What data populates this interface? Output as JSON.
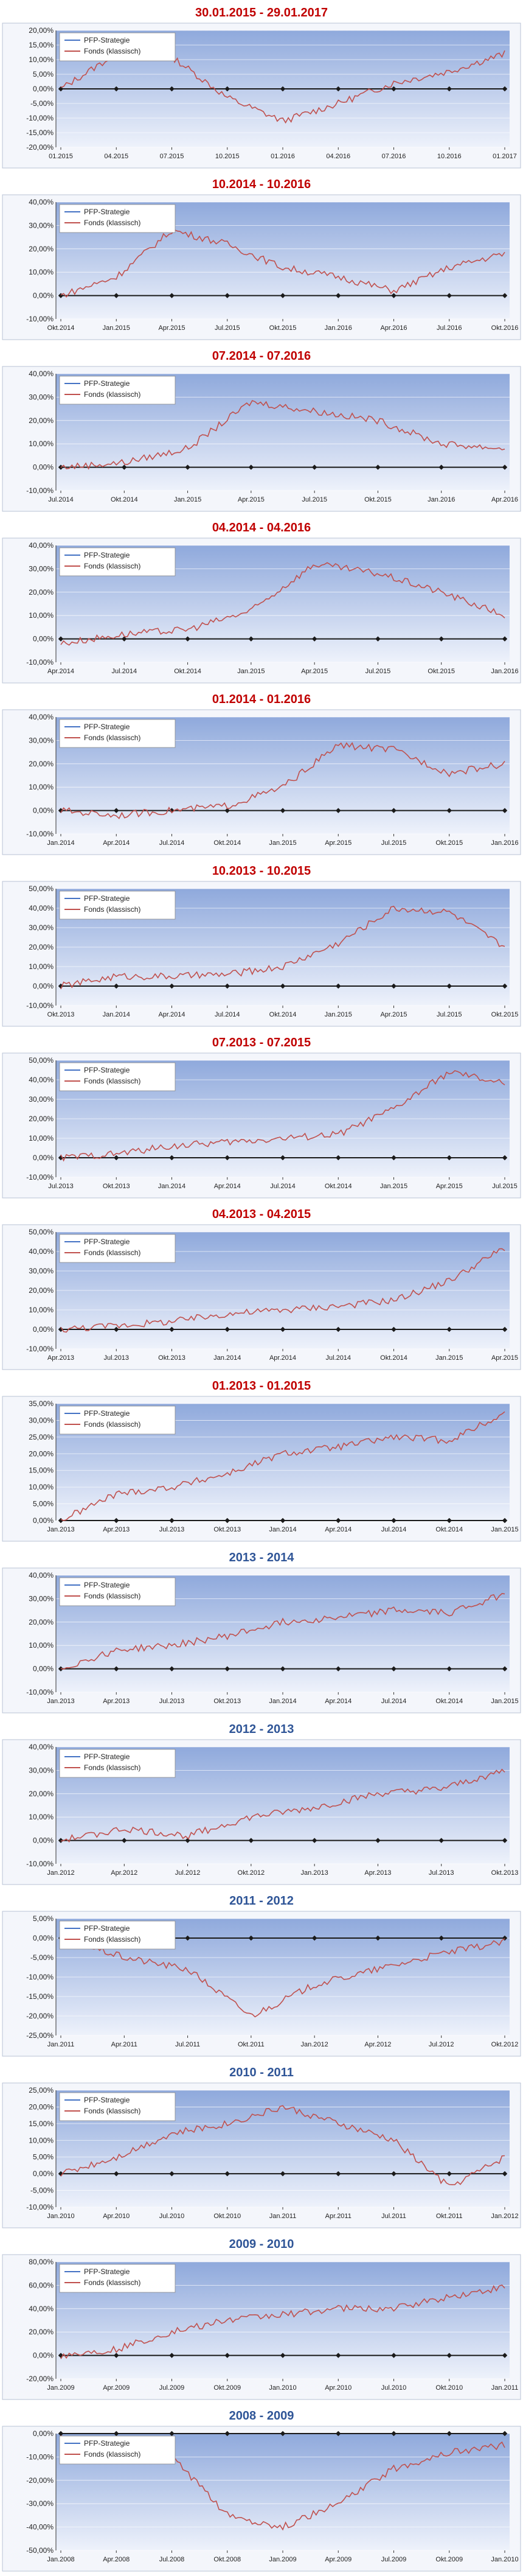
{
  "legend_labels": [
    "PFP-Strategie",
    "Fonds (klassisch)"
  ],
  "colors": {
    "title_red": "#c00000",
    "title_blue": "#2f5597",
    "series_pfp": "#4472c4",
    "series_fonds": "#c0504d"
  },
  "chart_data": [
    {
      "type": "line",
      "title": "30.01.2015 - 29.01.2017",
      "title_color": "red",
      "x_labels": [
        "01.2015",
        "04.2015",
        "07.2015",
        "10.2015",
        "01.2016",
        "04.2016",
        "07.2016",
        "10.2016",
        "01.2017"
      ],
      "ylim": [
        -20,
        20
      ],
      "yticks": [
        -20,
        -15,
        -10,
        -5,
        0,
        5,
        10,
        15,
        20
      ],
      "decimals": 2,
      "legend": "top-left",
      "series": [
        {
          "name": "PFP-Strategie",
          "values": [
            0,
            0,
            0,
            0,
            0,
            0,
            0,
            0,
            0
          ]
        },
        {
          "name": "Fonds (klassisch)",
          "values": [
            0,
            12,
            11,
            -3,
            -11,
            -5,
            2,
            6,
            12
          ]
        }
      ]
    },
    {
      "type": "line",
      "title": "10.2014 - 10.2016",
      "title_color": "red",
      "x_labels": [
        "Okt.2014",
        "Jan.2015",
        "Apr.2015",
        "Jul.2015",
        "Okt.2015",
        "Jan.2016",
        "Apr.2016",
        "Jul.2016",
        "Okt.2016"
      ],
      "ylim": [
        -10,
        40
      ],
      "yticks": [
        -10,
        0,
        10,
        20,
        30,
        40
      ],
      "decimals": 2,
      "legend": "top-left",
      "series": [
        {
          "name": "PFP-Strategie",
          "values": [
            0,
            0,
            0,
            0,
            0,
            0,
            0,
            0,
            0
          ]
        },
        {
          "name": "Fonds (klassisch)",
          "values": [
            0,
            8,
            28,
            22,
            12,
            8,
            2,
            12,
            18
          ]
        }
      ]
    },
    {
      "type": "line",
      "title": "07.2014 - 07.2016",
      "title_color": "red",
      "x_labels": [
        "Jul.2014",
        "Okt.2014",
        "Jan.2015",
        "Apr.2015",
        "Jul.2015",
        "Okt.2015",
        "Jan.2016",
        "Apr.2016"
      ],
      "ylim": [
        -10,
        40
      ],
      "yticks": [
        -10,
        0,
        10,
        20,
        30,
        40
      ],
      "decimals": 2,
      "legend": "top-left",
      "series": [
        {
          "name": "PFP-Strategie",
          "values": [
            0,
            0,
            0,
            0,
            0,
            0,
            0,
            0
          ]
        },
        {
          "name": "Fonds (klassisch)",
          "values": [
            0,
            2,
            8,
            28,
            24,
            20,
            10,
            8
          ]
        }
      ]
    },
    {
      "type": "line",
      "title": "04.2014 - 04.2016",
      "title_color": "red",
      "x_labels": [
        "Apr.2014",
        "Jul.2014",
        "Okt.2014",
        "Jan.2015",
        "Apr.2015",
        "Jul.2015",
        "Okt.2015",
        "Jan.2016"
      ],
      "ylim": [
        -10,
        40
      ],
      "yticks": [
        -10,
        0,
        10,
        20,
        30,
        40
      ],
      "decimals": 2,
      "legend": "top-left",
      "series": [
        {
          "name": "PFP-Strategie",
          "values": [
            0,
            0,
            0,
            0,
            0,
            0,
            0,
            0
          ]
        },
        {
          "name": "Fonds (klassisch)",
          "values": [
            -2,
            2,
            4,
            12,
            32,
            28,
            20,
            10
          ]
        }
      ]
    },
    {
      "type": "line",
      "title": "01.2014 - 01.2016",
      "title_color": "red",
      "x_labels": [
        "Jan.2014",
        "Apr.2014",
        "Jul.2014",
        "Okt.2014",
        "Jan.2015",
        "Apr.2015",
        "Jul.2015",
        "Okt.2015",
        "Jan.2016"
      ],
      "ylim": [
        -10,
        40
      ],
      "yticks": [
        -10,
        0,
        10,
        20,
        30,
        40
      ],
      "decimals": 2,
      "legend": "top-left",
      "series": [
        {
          "name": "PFP-Strategie",
          "values": [
            0,
            0,
            0,
            0,
            0,
            0,
            0,
            0,
            0
          ]
        },
        {
          "name": "Fonds (klassisch)",
          "values": [
            0,
            -2,
            0,
            2,
            10,
            28,
            26,
            16,
            20
          ]
        }
      ]
    },
    {
      "type": "line",
      "title": "10.2013 - 10.2015",
      "title_color": "red",
      "x_labels": [
        "Okt.2013",
        "Jan.2014",
        "Apr.2014",
        "Jul.2014",
        "Okt.2014",
        "Jan.2015",
        "Apr.2015",
        "Jul.2015",
        "Okt.2015"
      ],
      "ylim": [
        -10,
        50
      ],
      "yticks": [
        -10,
        0,
        10,
        20,
        30,
        40,
        50
      ],
      "decimals": 2,
      "legend": "top-left",
      "series": [
        {
          "name": "PFP-Strategie",
          "values": [
            0,
            0,
            0,
            0,
            0,
            0,
            0,
            0,
            0
          ]
        },
        {
          "name": "Fonds (klassisch)",
          "values": [
            0,
            5,
            5,
            6,
            10,
            22,
            40,
            38,
            20
          ]
        }
      ]
    },
    {
      "type": "line",
      "title": "07.2013 - 07.2015",
      "title_color": "red",
      "x_labels": [
        "Jul.2013",
        "Okt.2013",
        "Jan.2014",
        "Apr.2014",
        "Jul.2014",
        "Okt.2014",
        "Jan.2015",
        "Apr.2015",
        "Jul.2015"
      ],
      "ylim": [
        -10,
        50
      ],
      "yticks": [
        -10,
        0,
        10,
        20,
        30,
        40,
        50
      ],
      "decimals": 2,
      "legend": "top-left",
      "series": [
        {
          "name": "PFP-Strategie",
          "values": [
            0,
            0,
            0,
            0,
            0,
            0,
            0,
            0,
            0
          ]
        },
        {
          "name": "Fonds (klassisch)",
          "values": [
            0,
            2,
            6,
            8,
            10,
            12,
            25,
            44,
            38
          ]
        }
      ]
    },
    {
      "type": "line",
      "title": "04.2013 - 04.2015",
      "title_color": "red",
      "x_labels": [
        "Apr.2013",
        "Jul.2013",
        "Okt.2013",
        "Jan.2014",
        "Apr.2014",
        "Jul.2014",
        "Okt.2014",
        "Jan.2015",
        "Apr.2015"
      ],
      "ylim": [
        -10,
        50
      ],
      "yticks": [
        -10,
        0,
        10,
        20,
        30,
        40,
        50
      ],
      "decimals": 2,
      "legend": "top-left",
      "series": [
        {
          "name": "PFP-Strategie",
          "values": [
            0,
            0,
            0,
            0,
            0,
            0,
            0,
            0,
            0
          ]
        },
        {
          "name": "Fonds (klassisch)",
          "values": [
            0,
            2,
            4,
            8,
            10,
            12,
            15,
            25,
            42
          ]
        }
      ]
    },
    {
      "type": "line",
      "title": "01.2013 - 01.2015",
      "title_color": "red",
      "x_labels": [
        "Jan.2013",
        "Apr.2013",
        "Jul.2013",
        "Okt.2013",
        "Jan.2014",
        "Apr.2014",
        "Jul.2014",
        "Okt.2014",
        "Jan.2015"
      ],
      "ylim": [
        0,
        35
      ],
      "yticks": [
        0,
        5,
        10,
        15,
        20,
        25,
        30,
        35
      ],
      "decimals": 2,
      "legend": "top-left",
      "series": [
        {
          "name": "PFP-Strategie",
          "values": [
            0,
            0,
            0,
            0,
            0,
            0,
            0,
            0,
            0
          ]
        },
        {
          "name": "Fonds (klassisch)",
          "values": [
            0,
            8,
            10,
            14,
            20,
            22,
            25,
            24,
            32
          ]
        }
      ]
    },
    {
      "type": "line",
      "title": "2013 - 2014",
      "title_color": "blue",
      "x_labels": [
        "Jan.2013",
        "Apr.2013",
        "Jul.2013",
        "Okt.2013",
        "Jan.2014",
        "Apr.2014",
        "Jul.2014",
        "Okt.2014",
        "Jan.2015"
      ],
      "ylim": [
        -10,
        40
      ],
      "yticks": [
        -10,
        0,
        10,
        20,
        30,
        40
      ],
      "decimals": 2,
      "legend": "top-left",
      "series": [
        {
          "name": "PFP-Strategie",
          "values": [
            0,
            0,
            0,
            0,
            0,
            0,
            0,
            0,
            0
          ]
        },
        {
          "name": "Fonds (klassisch)",
          "values": [
            0,
            8,
            10,
            14,
            20,
            22,
            25,
            24,
            32
          ]
        }
      ]
    },
    {
      "type": "line",
      "title": "2012 - 2013",
      "title_color": "blue",
      "x_labels": [
        "Jan.2012",
        "Apr.2012",
        "Jul.2012",
        "Okt.2012",
        "Jan.2013",
        "Apr.2013",
        "Jul.2013",
        "Okt.2013"
      ],
      "ylim": [
        -10,
        40
      ],
      "yticks": [
        -10,
        0,
        10,
        20,
        30,
        40
      ],
      "decimals": 2,
      "legend": "top-left",
      "series": [
        {
          "name": "PFP-Strategie",
          "values": [
            0,
            0,
            0,
            0,
            0,
            0,
            0,
            0
          ]
        },
        {
          "name": "Fonds (klassisch)",
          "values": [
            0,
            5,
            2,
            10,
            14,
            20,
            22,
            30
          ]
        }
      ]
    },
    {
      "type": "line",
      "title": "2011 - 2012",
      "title_color": "blue",
      "x_labels": [
        "Jan.2011",
        "Apr.2011",
        "Jul.2011",
        "Okt.2011",
        "Jan.2012",
        "Apr.2012",
        "Jul.2012",
        "Okt.2012"
      ],
      "ylim": [
        -25,
        5
      ],
      "yticks": [
        -25,
        -20,
        -15,
        -10,
        -5,
        0,
        5
      ],
      "decimals": 2,
      "legend": "top-left",
      "series": [
        {
          "name": "PFP-Strategie",
          "values": [
            0,
            0,
            0,
            0,
            0,
            0,
            0,
            0
          ]
        },
        {
          "name": "Fonds (klassisch)",
          "values": [
            0,
            -5,
            -8,
            -20,
            -12,
            -8,
            -4,
            -1
          ]
        }
      ]
    },
    {
      "type": "line",
      "title": "2010 - 2011",
      "title_color": "blue",
      "x_labels": [
        "Jan.2010",
        "Apr.2010",
        "Jul.2010",
        "Okt.2010",
        "Jan.2011",
        "Apr.2011",
        "Jul.2011",
        "Okt.2011",
        "Jan.2012"
      ],
      "ylim": [
        -10,
        25
      ],
      "yticks": [
        -10,
        -5,
        0,
        5,
        10,
        15,
        20,
        25
      ],
      "decimals": 2,
      "legend": "top-left",
      "series": [
        {
          "name": "PFP-Strategie",
          "values": [
            0,
            0,
            0,
            0,
            0,
            0,
            0,
            0,
            0
          ]
        },
        {
          "name": "Fonds (klassisch)",
          "values": [
            0,
            5,
            12,
            15,
            20,
            15,
            10,
            -4,
            5
          ]
        }
      ]
    },
    {
      "type": "line",
      "title": "2009 - 2010",
      "title_color": "blue",
      "x_labels": [
        "Jan.2009",
        "Apr.2009",
        "Jul.2009",
        "Okt.2009",
        "Jan.2010",
        "Apr.2010",
        "Jul.2010",
        "Okt.2010",
        "Jan.2011"
      ],
      "ylim": [
        -20,
        80
      ],
      "yticks": [
        -20,
        0,
        20,
        40,
        60,
        80
      ],
      "decimals": 2,
      "legend": "top-left",
      "series": [
        {
          "name": "PFP-Strategie",
          "values": [
            0,
            0,
            0,
            0,
            0,
            0,
            0,
            0,
            0
          ]
        },
        {
          "name": "Fonds (klassisch)",
          "values": [
            0,
            5,
            20,
            30,
            35,
            40,
            40,
            50,
            58
          ]
        }
      ]
    },
    {
      "type": "line",
      "title": "2008 - 2009",
      "title_color": "blue",
      "x_labels": [
        "Jan.2008",
        "Apr.2008",
        "Jul.2008",
        "Okt.2008",
        "Jan.2009",
        "Apr.2009",
        "Jul.2009",
        "Okt.2009",
        "Jan.2010"
      ],
      "ylim": [
        -50,
        0
      ],
      "yticks": [
        -50,
        -40,
        -30,
        -20,
        -10,
        0
      ],
      "decimals": 2,
      "legend": "top-left",
      "series": [
        {
          "name": "PFP-Strategie",
          "values": [
            0,
            0,
            0,
            0,
            0,
            0,
            0,
            0,
            0
          ]
        },
        {
          "name": "Fonds (klassisch)",
          "values": [
            -2,
            -5,
            -10,
            -35,
            -40,
            -30,
            -15,
            -8,
            -5
          ]
        }
      ]
    }
  ]
}
